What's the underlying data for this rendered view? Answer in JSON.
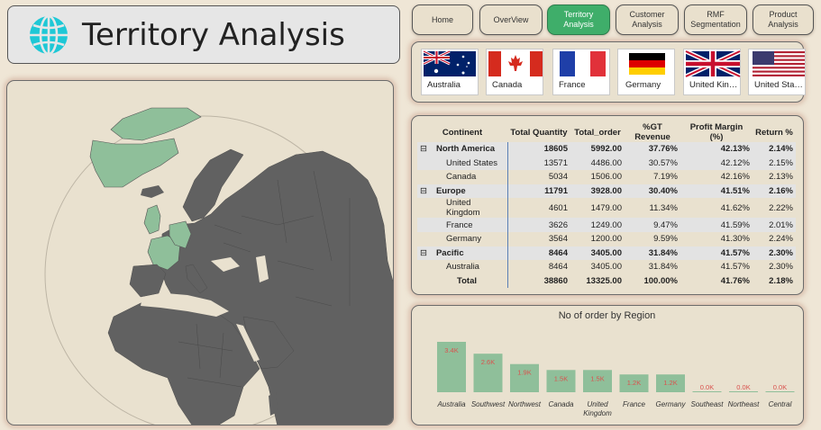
{
  "header": {
    "title": "Territory Analysis",
    "icon": "globe-icon",
    "icon_color": "#1ec8d6"
  },
  "nav": {
    "items": [
      {
        "label": "Home",
        "active": false
      },
      {
        "label": "OverView",
        "active": false
      },
      {
        "label": "Territory Analysis",
        "active": true
      },
      {
        "label": "Customer Analysis",
        "active": false
      },
      {
        "label": "RMF Segmentation",
        "active": false
      },
      {
        "label": "Product Analysis",
        "active": false
      }
    ],
    "active_color": "#3fae6a"
  },
  "flags": [
    {
      "label": "Australia",
      "icon": "australia-flag-icon"
    },
    {
      "label": "Canada",
      "icon": "canada-flag-icon"
    },
    {
      "label": "France",
      "icon": "france-flag-icon"
    },
    {
      "label": "Germany",
      "icon": "germany-flag-icon"
    },
    {
      "label": "United Kingdom",
      "icon": "uk-flag-icon"
    },
    {
      "label": "United States",
      "icon": "us-flag-icon"
    }
  ],
  "map": {
    "highlight_color": "#8fbf9a",
    "land_color": "#616161",
    "ocean_color": "#e9e1cf"
  },
  "matrix": {
    "columns": [
      "Continent",
      "Total Quantity",
      "Total_order",
      "%GT Revenue",
      "Profit Margin (%)",
      "Return %"
    ],
    "rows": [
      {
        "level": 0,
        "label": "North America",
        "values": [
          "18605",
          "5992.00",
          "37.76%",
          "42.13%",
          "2.14%"
        ]
      },
      {
        "level": 1,
        "label": "United States",
        "values": [
          "13571",
          "4486.00",
          "30.57%",
          "42.12%",
          "2.15%"
        ]
      },
      {
        "level": 1,
        "label": "Canada",
        "values": [
          "5034",
          "1506.00",
          "7.19%",
          "42.16%",
          "2.13%"
        ]
      },
      {
        "level": 0,
        "label": "Europe",
        "values": [
          "11791",
          "3928.00",
          "30.40%",
          "41.51%",
          "2.16%"
        ]
      },
      {
        "level": 1,
        "label": "United Kingdom",
        "values": [
          "4601",
          "1479.00",
          "11.34%",
          "41.62%",
          "2.22%"
        ]
      },
      {
        "level": 1,
        "label": "France",
        "values": [
          "3626",
          "1249.00",
          "9.47%",
          "41.59%",
          "2.01%"
        ]
      },
      {
        "level": 1,
        "label": "Germany",
        "values": [
          "3564",
          "1200.00",
          "9.59%",
          "41.30%",
          "2.24%"
        ]
      },
      {
        "level": 0,
        "label": "Pacific",
        "values": [
          "8464",
          "3405.00",
          "31.84%",
          "41.57%",
          "2.30%"
        ]
      },
      {
        "level": 1,
        "label": "Australia",
        "values": [
          "8464",
          "3405.00",
          "31.84%",
          "41.57%",
          "2.30%"
        ]
      },
      {
        "level": 2,
        "label": "Total",
        "values": [
          "38860",
          "13325.00",
          "100.00%",
          "41.76%",
          "2.18%"
        ]
      }
    ],
    "expand_symbol": "⊟"
  },
  "chart_data": {
    "type": "bar",
    "title": "No of order by Region",
    "categories": [
      "Australia",
      "Southwest",
      "Northwest",
      "Canada",
      "United Kingdom",
      "France",
      "Germany",
      "Southeast",
      "Northeast",
      "Central"
    ],
    "values": [
      3.4,
      2.6,
      1.9,
      1.5,
      1.5,
      1.2,
      1.2,
      0.0,
      0.0,
      0.0
    ],
    "data_labels": [
      "3.4K",
      "2.6K",
      "1.9K",
      "1.5K",
      "1.5K",
      "1.2K",
      "1.2K",
      "0.0K",
      "0.0K",
      "0.0K"
    ],
    "unit": "K",
    "bar_color": "#8fbf9a",
    "label_color": "#d9534f",
    "ylim": [
      0,
      3.4
    ]
  }
}
